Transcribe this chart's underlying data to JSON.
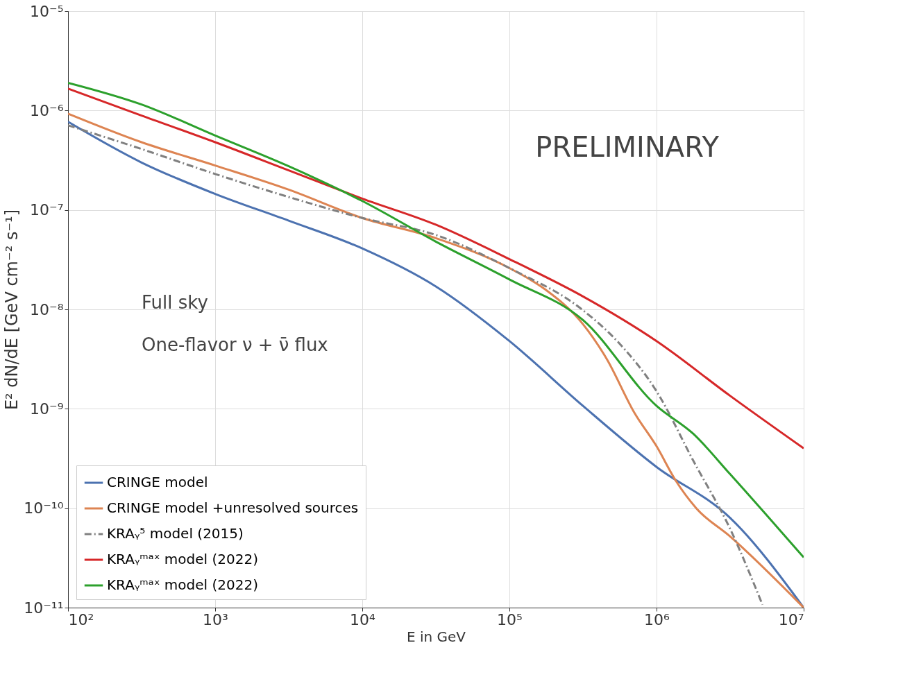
{
  "chart_data": {
    "type": "line",
    "xlabel": "E in GeV",
    "ylabel": "E² dN/dE [GeV cm⁻² s⁻¹]",
    "annotations": [
      "PRELIMINARY",
      "Full sky",
      "One-flavor ν + ν̄ flux"
    ],
    "log": "xy",
    "grid": true,
    "legend": "bottom left",
    "xlim": [
      100,
      10000000
    ],
    "ylim": [
      1e-11,
      1e-05
    ],
    "xticks": [
      {
        "value": 100,
        "label": "10²"
      },
      {
        "value": 1000,
        "label": "10³"
      },
      {
        "value": 10000,
        "label": "10⁴"
      },
      {
        "value": 100000,
        "label": "10⁵"
      },
      {
        "value": 1000000,
        "label": "10⁶"
      },
      {
        "value": 10000000,
        "label": "10⁷"
      }
    ],
    "yticks": [
      {
        "value": 1e-11,
        "label": "10⁻¹¹"
      },
      {
        "value": 1e-10,
        "label": "10⁻¹⁰"
      },
      {
        "value": 1e-09,
        "label": "10⁻⁹"
      },
      {
        "value": 1e-08,
        "label": "10⁻⁸"
      },
      {
        "value": 1e-07,
        "label": "10⁻⁷"
      },
      {
        "value": 1e-06,
        "label": "10⁻⁶"
      },
      {
        "value": 1e-05,
        "label": "10⁻⁵"
      }
    ],
    "series": [
      {
        "name": "CRINGE model",
        "color": "#4c72b0",
        "line_style": "solid",
        "x": [
          100,
          316,
          1000,
          3162,
          10000,
          31623,
          100000,
          316228,
          1000000,
          3162278,
          10000000
        ],
        "values": [
          7.7e-07,
          3e-07,
          1.45e-07,
          7.8e-08,
          4.1e-08,
          1.7e-08,
          4.8e-09,
          1.07e-09,
          2.6e-10,
          8e-11,
          1e-11
        ]
      },
      {
        "name": "CRINGE model +unresolved sources",
        "color": "#dd8452",
        "line_style": "solid",
        "x": [
          100,
          316,
          1000,
          3162,
          10000,
          31623,
          100000,
          173780,
          316228,
          457088,
          707946,
          1000000,
          1348963,
          1862087,
          3162278,
          10000000
        ],
        "values": [
          9.3e-07,
          4.8e-07,
          2.8e-07,
          1.6e-07,
          8.3e-08,
          5.2e-08,
          2.6e-08,
          1.6e-08,
          7.1e-09,
          3.2e-09,
          9.1e-10,
          4.2e-10,
          1.9e-10,
          1e-10,
          5.2e-11,
          1e-11
        ]
      },
      {
        "name": "KRAᵧ⁵ model (2015)",
        "color": "#808080",
        "line_style": "dashdot",
        "x": [
          100,
          316,
          1000,
          3162,
          10000,
          31623,
          100000,
          316228,
          562341,
          1000000,
          1778279,
          3162278,
          5248075
        ],
        "values": [
          7.1e-07,
          4.1e-07,
          2.3e-07,
          1.35e-07,
          8.3e-08,
          5.6e-08,
          2.6e-08,
          9.8e-09,
          4.5e-09,
          1.5e-09,
          3e-10,
          6.2e-11,
          1.07e-11
        ]
      },
      {
        "name": "KRAᵧᵐᵃˣ model (2022)",
        "color": "#d62728",
        "line_style": "solid",
        "x": [
          100,
          316,
          1000,
          3162,
          10000,
          31623,
          100000,
          316228,
          1000000,
          3162278,
          10000000
        ],
        "values": [
          1.66e-06,
          8.9e-07,
          4.8e-07,
          2.5e-07,
          1.3e-07,
          7.1e-08,
          3.2e-08,
          1.35e-08,
          4.8e-09,
          1.35e-09,
          4e-10
        ]
      },
      {
        "name": "KRAᵧᵐᵃˣ model (2022)",
        "color": "#2ca02c",
        "line_style": "solid",
        "x": [
          100,
          316,
          1000,
          3162,
          10000,
          31623,
          100000,
          316228,
          1000000,
          1778279,
          3162278,
          10000000
        ],
        "values": [
          1.9e-06,
          1.15e-06,
          5.6e-07,
          2.75e-07,
          1.23e-07,
          4.8e-08,
          2e-08,
          7.8e-09,
          1.07e-09,
          5.6e-10,
          2.2e-10,
          3.2e-11
        ]
      }
    ]
  }
}
